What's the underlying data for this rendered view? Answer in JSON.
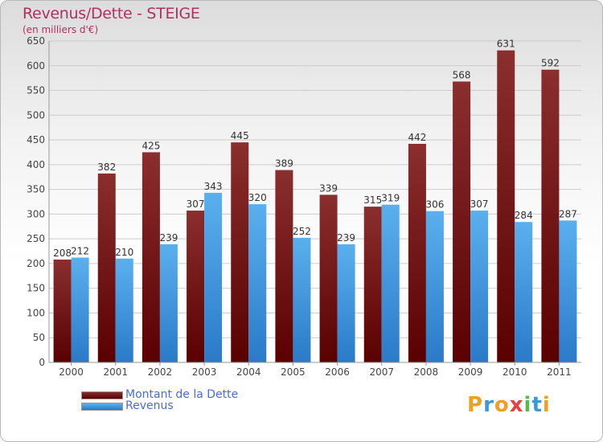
{
  "header": {
    "title": "Revenus/Dette - STEIGE",
    "subtitle": "(en milliers d'€)"
  },
  "chart_data": {
    "type": "bar",
    "title": "Revenus/Dette - STEIGE",
    "ylabel": "(en milliers d'€)",
    "categories": [
      "2000",
      "2001",
      "2002",
      "2003",
      "2004",
      "2005",
      "2006",
      "2007",
      "2008",
      "2009",
      "2010",
      "2011"
    ],
    "series": [
      {
        "name": "Montant de la Dette",
        "values": [
          208,
          382,
          425,
          307,
          445,
          389,
          339,
          315,
          442,
          568,
          631,
          592
        ],
        "color": "#7a1c1c"
      },
      {
        "name": "Revenus",
        "values": [
          212,
          210,
          239,
          343,
          320,
          252,
          239,
          319,
          306,
          307,
          284,
          287
        ],
        "color": "#4aa3e8"
      }
    ],
    "ylim": [
      0,
      650
    ],
    "yticks": [
      0,
      50,
      100,
      150,
      200,
      250,
      300,
      350,
      400,
      450,
      500,
      550,
      600,
      650
    ],
    "grid": true,
    "legend": "bottom-left"
  },
  "legend": {
    "items": [
      {
        "label": "Montant de la Dette",
        "color": "#7a1c1c"
      },
      {
        "label": "Revenus",
        "color": "#4aa3e8"
      }
    ]
  },
  "logo": {
    "letters": [
      "P",
      "r",
      "o",
      "x",
      "i",
      "t",
      "i"
    ],
    "colors": [
      "#f0a020",
      "#3a9ad9",
      "#f0a020",
      "#e84040",
      "#5cb84a",
      "#3a9ad9",
      "#f0a020"
    ]
  }
}
